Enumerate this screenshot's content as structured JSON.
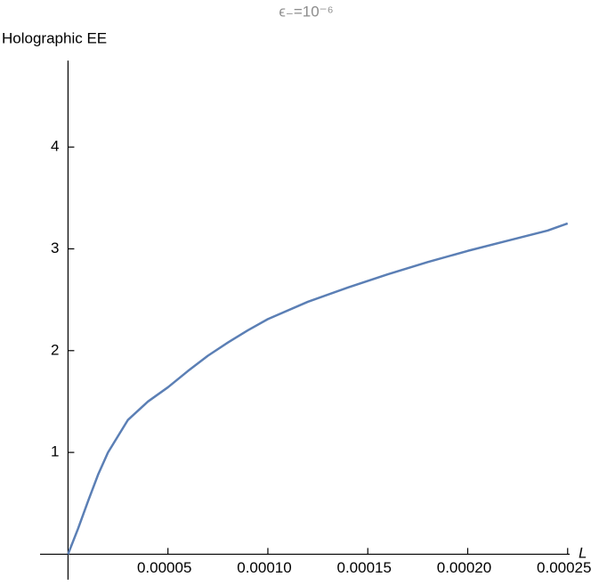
{
  "chart_data": {
    "type": "line",
    "title": "ϵ₋=10⁻⁶",
    "y_label": "Holographic EE",
    "x_label": "L",
    "x": [
      0,
      5e-06,
      1e-05,
      1.5e-05,
      2e-05,
      3e-05,
      4e-05,
      5e-05,
      6e-05,
      7e-05,
      8e-05,
      9e-05,
      0.0001,
      0.00012,
      0.00014,
      0.00016,
      0.00018,
      0.0002,
      0.00022,
      0.00024,
      0.00025
    ],
    "series": [
      {
        "color": "#5b7fb5",
        "values": [
          0,
          0.25,
          0.52,
          0.78,
          1.0,
          1.32,
          1.5,
          1.64,
          1.8,
          1.95,
          2.08,
          2.2,
          2.31,
          2.48,
          2.62,
          2.75,
          2.87,
          2.98,
          3.08,
          3.18,
          3.25
        ]
      }
    ],
    "xlim": [
      -1.4e-05,
      0.000251
    ],
    "ylim": [
      -0.25,
      4.85
    ],
    "xticks": [
      {
        "value": 5e-05,
        "label": "0.00005"
      },
      {
        "value": 0.0001,
        "label": "0.00010"
      },
      {
        "value": 0.00015,
        "label": "0.00015"
      },
      {
        "value": 0.0002,
        "label": "0.00020"
      },
      {
        "value": 0.00025,
        "label": "0.00025"
      }
    ],
    "yticks": [
      1,
      2,
      3,
      4
    ]
  }
}
